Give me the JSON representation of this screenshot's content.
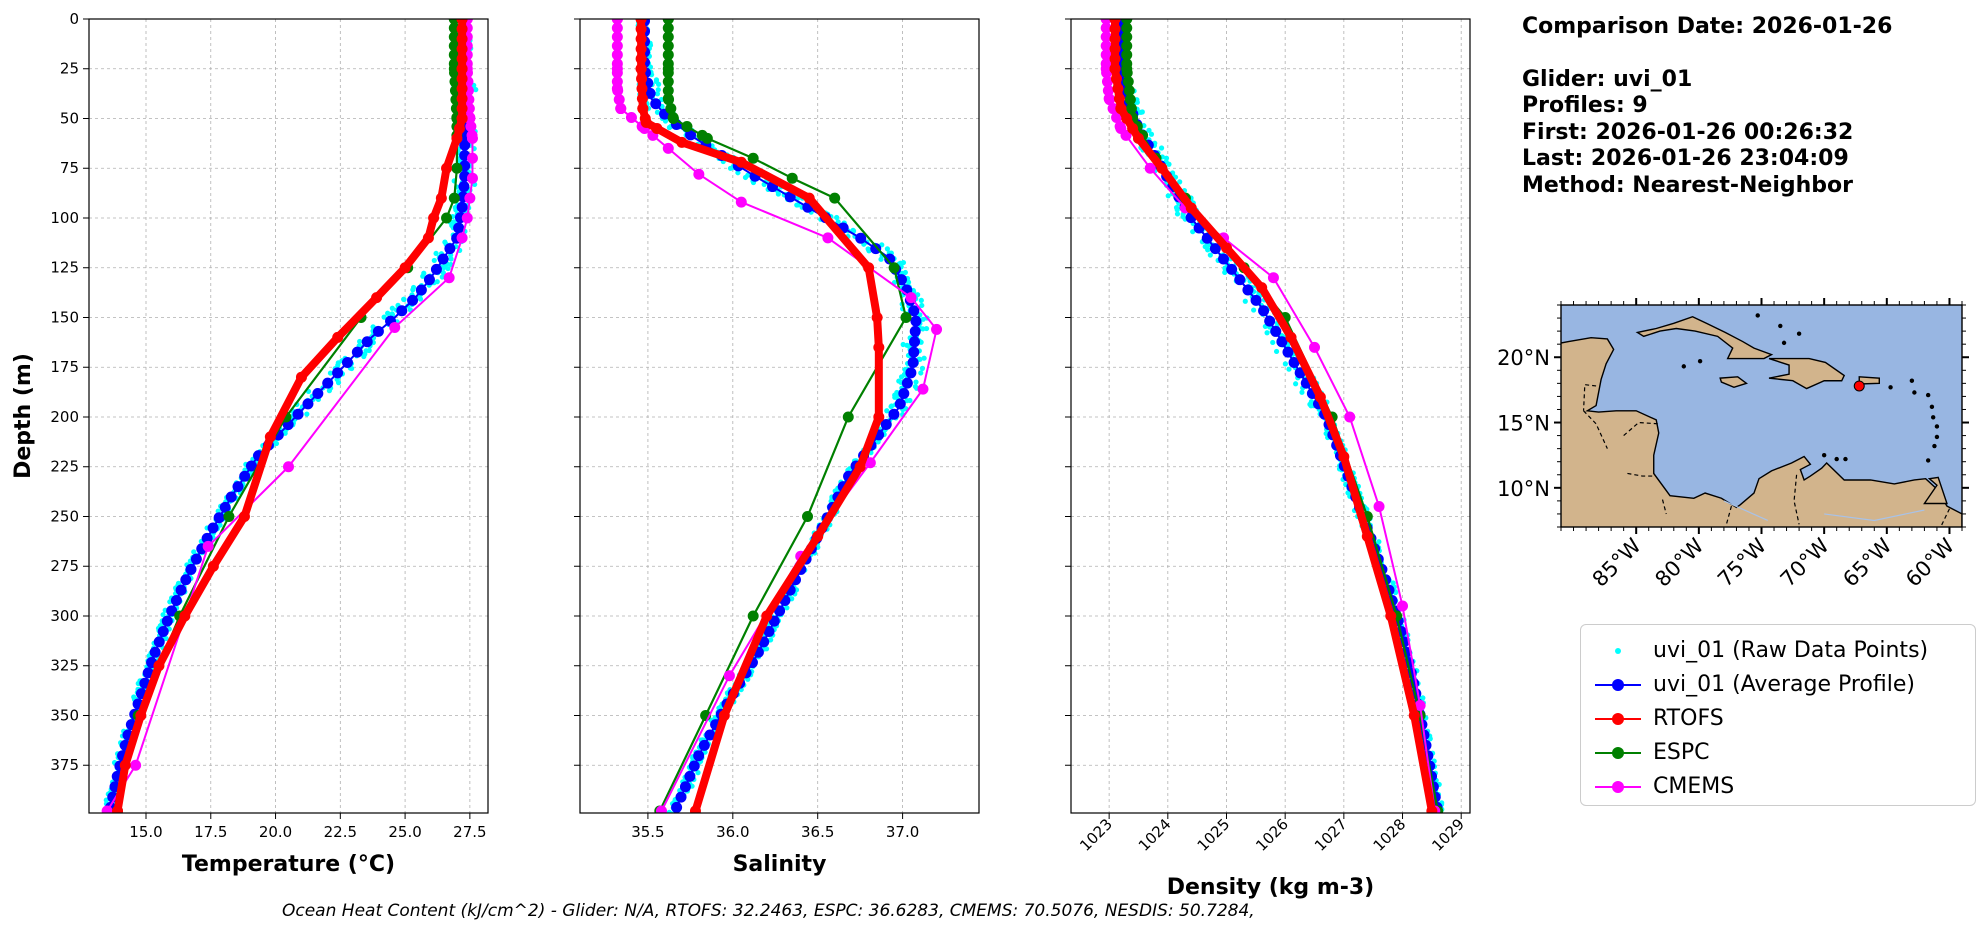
{
  "info": {
    "comparison_date": "Comparison Date: 2026-01-26",
    "glider": "Glider: uvi_01",
    "profiles": "Profiles: 9",
    "first": "First: 2026-01-26 00:26:32",
    "last": "Last: 2026-01-26 23:04:09",
    "method": "Method: Nearest-Neighbor"
  },
  "footer": "Ocean Heat Content (kJ/cm^2) - Glider: N/A,  RTOFS: 32.2463,  ESPC: 36.6283,  CMEMS: 70.5076,  NESDIS: 50.7284,",
  "colors": {
    "raw": "#00ffff",
    "avg": "#0000ff",
    "rtofs": "#ff0000",
    "espc": "#008000",
    "cmems": "#ff00ff",
    "ocean": "#98b6e2",
    "land": "#d2b48c"
  },
  "legend": [
    {
      "key": "raw",
      "label": "uvi_01 (Raw Data Points)",
      "style": "dot"
    },
    {
      "key": "avg",
      "label": "uvi_01 (Average Profile)",
      "style": "line-marker"
    },
    {
      "key": "rtofs",
      "label": "RTOFS",
      "style": "line-marker"
    },
    {
      "key": "espc",
      "label": "ESPC",
      "style": "line-marker"
    },
    {
      "key": "cmems",
      "label": "CMEMS",
      "style": "line-marker"
    }
  ],
  "chart_data": [
    {
      "type": "line",
      "id": "temperature",
      "xlabel": "Temperature ($^{o}C$)",
      "xlabel_display": "Temperature (°C)",
      "ylabel": "Depth (m)",
      "xlim": [
        12.8,
        28.2
      ],
      "ylim": [
        399,
        0
      ],
      "xticks": [
        15.0,
        17.5,
        20.0,
        22.5,
        25.0,
        27.5
      ],
      "xtick_labels": [
        "15.0",
        "17.5",
        "20.0",
        "22.5",
        "25.0",
        "27.5"
      ],
      "yticks": [
        0,
        25,
        50,
        75,
        100,
        125,
        150,
        175,
        200,
        225,
        250,
        275,
        300,
        325,
        350,
        375
      ],
      "grid": true,
      "series": [
        {
          "name": "uvi_01 (Average Profile)",
          "key": "avg",
          "x": [
            27.3,
            27.3,
            27.3,
            27.3,
            27.3,
            27.2,
            27.0,
            26.5,
            26.0,
            25.4,
            24.6,
            23.7,
            22.6,
            21.5,
            20.4,
            19.3,
            18.3,
            17.4,
            16.6,
            15.9,
            15.3,
            14.8,
            14.3,
            13.9,
            13.6
          ],
          "y": [
            0,
            25,
            50,
            65,
            80,
            95,
            110,
            120,
            130,
            140,
            150,
            160,
            175,
            190,
            205,
            220,
            240,
            260,
            280,
            300,
            320,
            340,
            360,
            380,
            398
          ]
        },
        {
          "name": "RTOFS",
          "key": "rtofs",
          "x": [
            27.2,
            27.2,
            27.2,
            27.0,
            26.6,
            26.4,
            26.1,
            25.9,
            25.0,
            23.9,
            22.4,
            21.0,
            19.8,
            18.8,
            17.6,
            16.5,
            15.5,
            14.8,
            14.2,
            13.9
          ],
          "y": [
            0,
            25,
            50,
            60,
            75,
            90,
            100,
            110,
            125,
            140,
            160,
            180,
            210,
            250,
            275,
            300,
            325,
            350,
            375,
            398
          ]
        },
        {
          "name": "ESPC",
          "key": "espc",
          "x": [
            26.9,
            26.9,
            27.0,
            27.0,
            26.9,
            26.6,
            25.1,
            23.3,
            20.4,
            18.2,
            16.3,
            14.7,
            13.9
          ],
          "y": [
            0,
            25,
            50,
            75,
            90,
            100,
            125,
            150,
            200,
            250,
            300,
            350,
            398
          ]
        },
        {
          "name": "CMEMS",
          "key": "cmems",
          "x": [
            27.4,
            27.4,
            27.5,
            27.6,
            27.6,
            27.6,
            27.5,
            27.4,
            27.2,
            26.7,
            24.6,
            20.5,
            17.4,
            14.6,
            13.5
          ],
          "y": [
            0,
            25,
            50,
            60,
            70,
            80,
            90,
            100,
            110,
            130,
            155,
            225,
            265,
            375,
            398
          ]
        }
      ]
    },
    {
      "type": "line",
      "id": "salinity",
      "xlabel": "Salinity",
      "xlim": [
        35.1,
        37.45
      ],
      "ylim": [
        399,
        0
      ],
      "xticks": [
        35.5,
        36.0,
        36.5,
        37.0
      ],
      "xtick_labels": [
        "35.5",
        "36.0",
        "36.5",
        "37.0"
      ],
      "yticks": [
        0,
        25,
        50,
        75,
        100,
        125,
        150,
        175,
        200,
        225,
        250,
        275,
        300,
        325,
        350,
        375
      ],
      "grid": true,
      "series": [
        {
          "name": "uvi_01 (Average Profile)",
          "key": "avg",
          "x": [
            35.48,
            35.48,
            35.52,
            35.62,
            35.78,
            35.96,
            36.15,
            36.35,
            36.55,
            36.75,
            36.92,
            37.02,
            37.08,
            37.06,
            36.98,
            36.85,
            36.68,
            36.5,
            36.32,
            36.14,
            35.96,
            35.8,
            35.66
          ],
          "y": [
            0,
            25,
            40,
            50,
            60,
            70,
            80,
            90,
            100,
            110,
            120,
            135,
            150,
            175,
            195,
            210,
            230,
            260,
            290,
            320,
            345,
            370,
            398
          ]
        },
        {
          "name": "RTOFS",
          "key": "rtofs",
          "x": [
            35.46,
            35.46,
            35.47,
            35.49,
            35.7,
            36.05,
            36.45,
            36.8,
            36.85,
            36.86,
            36.86,
            36.75,
            36.5,
            36.2,
            35.95,
            35.78
          ],
          "y": [
            0,
            25,
            45,
            52,
            62,
            72,
            90,
            125,
            150,
            165,
            200,
            225,
            260,
            300,
            350,
            398
          ]
        },
        {
          "name": "ESPC",
          "key": "espc",
          "x": [
            35.62,
            35.62,
            35.62,
            35.65,
            35.85,
            36.12,
            36.35,
            36.6,
            36.95,
            37.02,
            36.68,
            36.44,
            36.12,
            35.84,
            35.57
          ],
          "y": [
            0,
            25,
            40,
            50,
            60,
            70,
            80,
            90,
            125,
            150,
            200,
            250,
            300,
            350,
            398
          ]
        },
        {
          "name": "CMEMS",
          "key": "cmems",
          "x": [
            35.32,
            35.32,
            35.32,
            35.34,
            35.48,
            35.62,
            35.8,
            36.05,
            36.56,
            37.05,
            37.2,
            37.12,
            36.81,
            36.4,
            35.98,
            35.58
          ],
          "y": [
            0,
            25,
            35,
            45,
            55,
            65,
            78,
            92,
            110,
            140,
            156,
            186,
            223,
            270,
            330,
            398
          ]
        }
      ]
    },
    {
      "type": "line",
      "id": "density",
      "xlabel": "Density (kg m-3)",
      "xlim": [
        1022.35,
        1029.15
      ],
      "ylim": [
        399,
        0
      ],
      "xticks": [
        1023,
        1024,
        1025,
        1026,
        1027,
        1028,
        1029
      ],
      "xtick_labels": [
        "1023",
        "1024",
        "1025",
        "1026",
        "1027",
        "1028",
        "1029"
      ],
      "yticks": [
        0,
        25,
        50,
        75,
        100,
        125,
        150,
        175,
        200,
        225,
        250,
        275,
        300,
        325,
        350,
        375
      ],
      "grid": true,
      "series": [
        {
          "name": "uvi_01 (Average Profile)",
          "key": "avg",
          "x": [
            1023.2,
            1023.2,
            1023.3,
            1023.5,
            1023.8,
            1024.1,
            1024.4,
            1024.8,
            1025.2,
            1025.6,
            1025.9,
            1026.3,
            1026.7,
            1026.95,
            1027.2,
            1027.45,
            1027.75,
            1028.0,
            1028.2,
            1028.4,
            1028.6
          ],
          "y": [
            0,
            25,
            40,
            55,
            70,
            85,
            100,
            115,
            130,
            145,
            160,
            180,
            200,
            220,
            240,
            260,
            285,
            310,
            335,
            365,
            398
          ]
        },
        {
          "name": "RTOFS",
          "key": "rtofs",
          "x": [
            1023.1,
            1023.1,
            1023.2,
            1023.5,
            1023.9,
            1024.4,
            1025.0,
            1025.6,
            1026.1,
            1026.6,
            1027.0,
            1027.4,
            1027.8,
            1028.2,
            1028.5
          ],
          "y": [
            0,
            25,
            45,
            60,
            75,
            95,
            115,
            135,
            160,
            190,
            220,
            260,
            300,
            350,
            398
          ]
        },
        {
          "name": "ESPC",
          "key": "espc",
          "x": [
            1023.3,
            1023.3,
            1023.4,
            1023.8,
            1024.3,
            1025.3,
            1026.0,
            1026.8,
            1027.4,
            1027.9,
            1028.3,
            1028.6
          ],
          "y": [
            0,
            25,
            50,
            70,
            90,
            125,
            150,
            200,
            250,
            300,
            350,
            398
          ]
        },
        {
          "name": "CMEMS",
          "key": "cmems",
          "x": [
            1022.95,
            1022.95,
            1023.0,
            1023.2,
            1023.7,
            1024.3,
            1024.95,
            1025.8,
            1026.5,
            1027.1,
            1027.6,
            1028.0,
            1028.3,
            1028.55
          ],
          "y": [
            0,
            25,
            40,
            55,
            75,
            95,
            110,
            130,
            165,
            200,
            245,
            295,
            345,
            398
          ]
        }
      ]
    }
  ],
  "map": {
    "lon_range": [
      -91,
      -59
    ],
    "lat_range": [
      7,
      24
    ],
    "xtick_labels": [
      "85°W",
      "80°W",
      "75°W",
      "70°W",
      "65°W",
      "60°W"
    ],
    "xtick_values": [
      -85,
      -80,
      -75,
      -70,
      -65,
      -60
    ],
    "ytick_labels": [
      "20°N",
      "15°N",
      "10°N"
    ],
    "ytick_values": [
      20,
      15,
      10
    ],
    "glider_marker": {
      "lon": -67.2,
      "lat": 17.8
    }
  }
}
